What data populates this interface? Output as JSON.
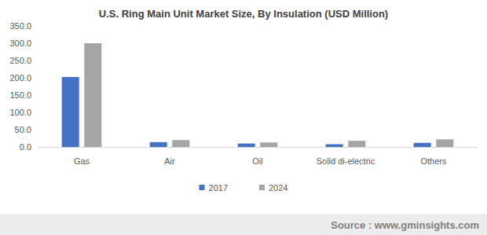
{
  "chart_data": {
    "type": "bar",
    "title": "U.S. Ring Main Unit Market Size, By Insulation (USD Million)",
    "categories": [
      "Gas",
      "Air",
      "Oil",
      "Solid di-electric",
      "Others"
    ],
    "series": [
      {
        "name": "2017",
        "color": "#4472c4",
        "values": [
          202,
          14,
          10,
          8,
          12
        ]
      },
      {
        "name": "2024",
        "color": "#a5a5a5",
        "values": [
          300,
          20,
          13,
          18,
          22
        ]
      }
    ],
    "ylim": [
      0,
      350
    ],
    "yticks": [
      {
        "value": 0,
        "label": "0.0"
      },
      {
        "value": 50,
        "label": "50.0"
      },
      {
        "value": 100,
        "label": "100.0"
      },
      {
        "value": 150,
        "label": "150.0"
      },
      {
        "value": 200,
        "label": "200.0"
      },
      {
        "value": 250,
        "label": "250.0"
      },
      {
        "value": 300,
        "label": "300.0"
      },
      {
        "value": 350,
        "label": "350.0"
      }
    ],
    "grid": false,
    "legend": "bottom",
    "annotations": [
      "Source : www.gminsights.com"
    ]
  }
}
